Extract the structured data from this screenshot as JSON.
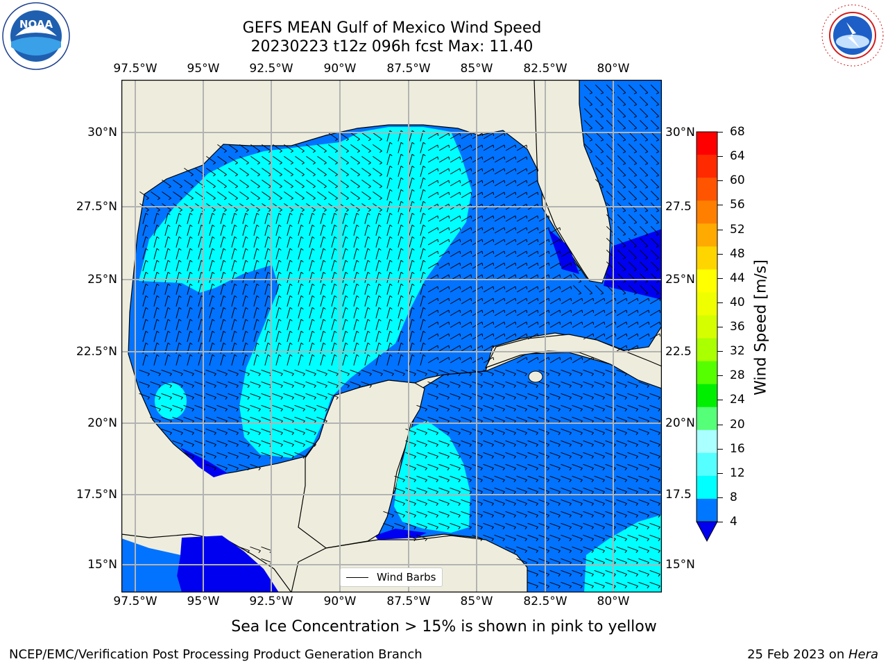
{
  "header": {
    "title_line1": "GEFS MEAN Gulf of Mexico Wind Speed",
    "title_line2": "20230223 t12z 096h fcst   Max: 11.40"
  },
  "logos": {
    "left": "NOAA",
    "left_ring": "NATIONAL OCEANIC AND ATMOSPHERIC ADMINISTRATION · U.S. DEPARTMENT OF COMMERCE",
    "right_ring": "NATIONAL WEATHER SERVICE"
  },
  "map": {
    "lon_ticks": [
      "97.5°W",
      "95°W",
      "92.5°W",
      "90°W",
      "87.5°W",
      "85°W",
      "82.5°W",
      "80°W"
    ],
    "lat_ticks": [
      "30°N",
      "27.5°N",
      "25°N",
      "22.5°N",
      "20°N",
      "17.5°N",
      "15°N"
    ],
    "lat_ticks_right": [
      "30°N",
      "27.5",
      "25°N",
      "22.5",
      "20°N",
      "17.5",
      "15°N"
    ],
    "legend_label": "Wind Barbs",
    "colors": {
      "land": "#eeeddd",
      "water_4_8": "#0173ff",
      "water_0_4": "#0000f0",
      "wind_8_12": "#00ffff",
      "grid": "#b3b3b3"
    }
  },
  "colorbar": {
    "label": "Wind Speed [m/s]",
    "ticks": [
      "68",
      "64",
      "60",
      "56",
      "52",
      "48",
      "44",
      "40",
      "36",
      "32",
      "28",
      "24",
      "20",
      "16",
      "12",
      "8",
      "4"
    ],
    "colors": [
      "#ff0000",
      "#ff2a00",
      "#ff5500",
      "#ff8000",
      "#ffaa00",
      "#ffd500",
      "#ffff00",
      "#f0ff00",
      "#d5ff00",
      "#aaff00",
      "#55ff00",
      "#00ee00",
      "#55ff77",
      "#aaffff",
      "#55ffff",
      "#00ffff",
      "#0077ff"
    ],
    "under_color": "#0000ee"
  },
  "caption": "Sea Ice Concentration > 15% is shown in pink to yellow",
  "footer": {
    "left": "NCEP/EMC/Verification Post Processing Product Generation Branch",
    "right_prefix": "25 Feb 2023 on ",
    "right_host": "Hera"
  }
}
